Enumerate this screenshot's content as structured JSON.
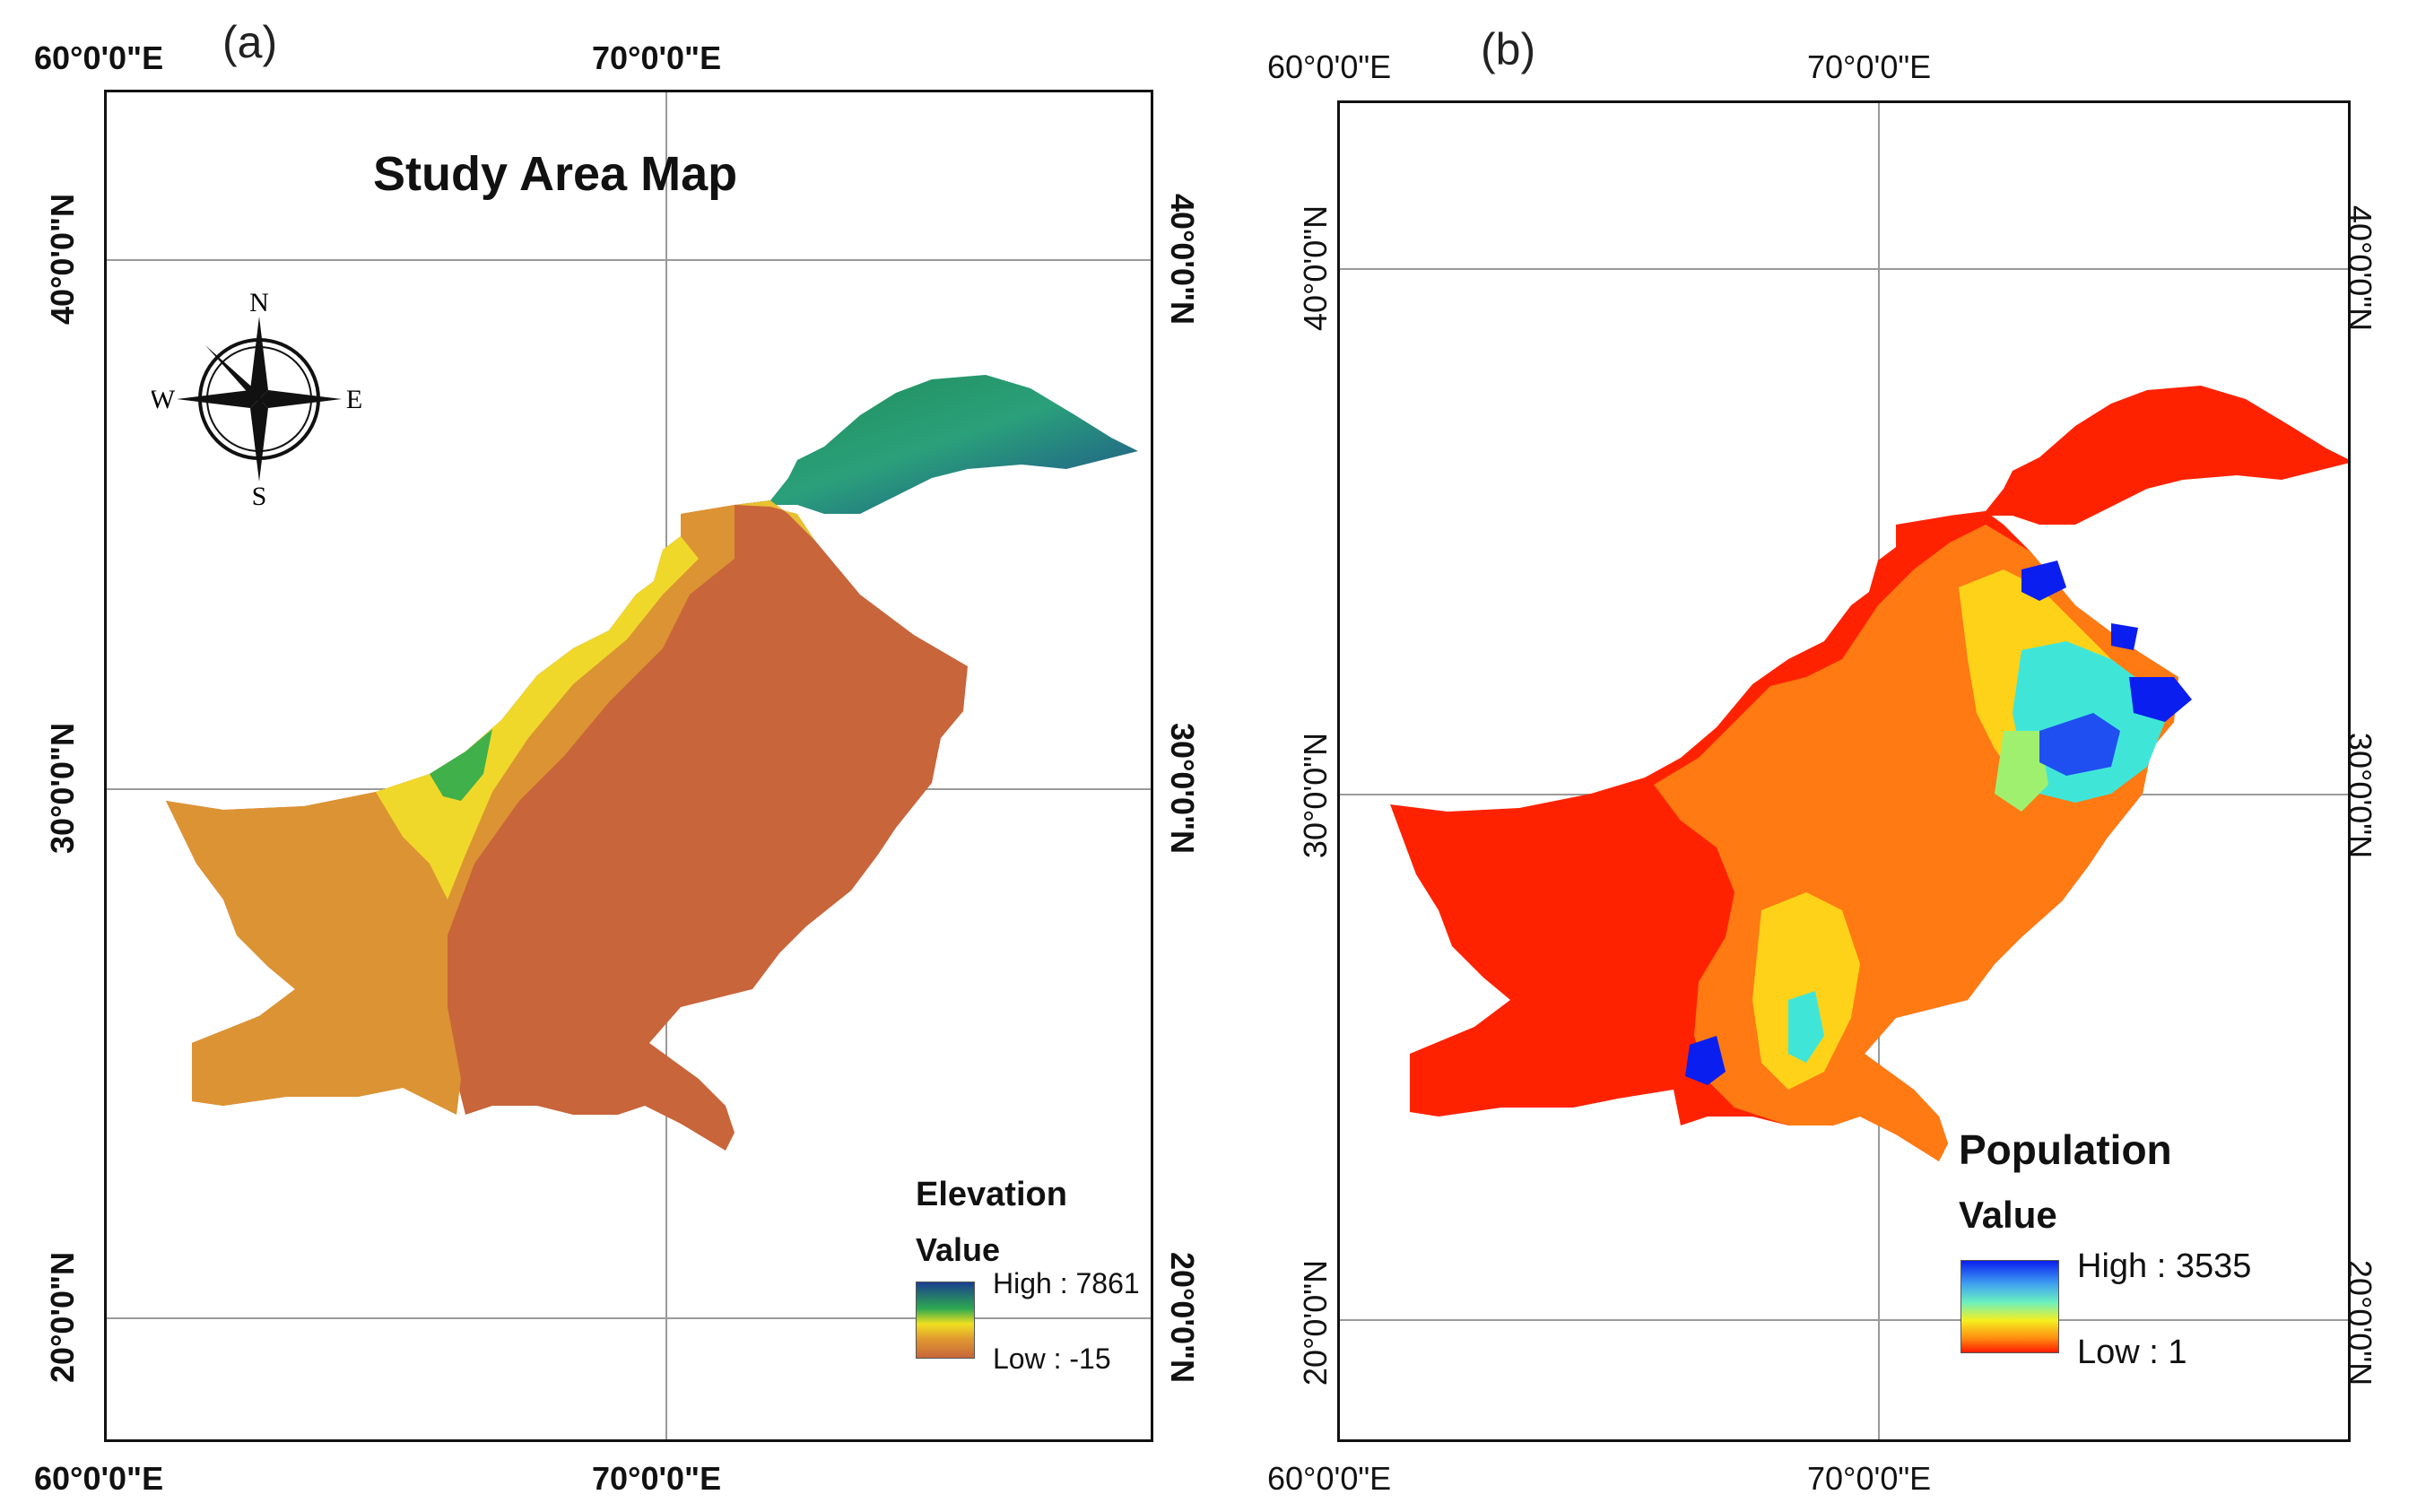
{
  "panel_a": {
    "letter": "(a)",
    "title": "Study Area Map",
    "lon_ticks_top": [
      "60°0'0\"E",
      "70°0'0\"E"
    ],
    "lon_ticks_bottom": [
      "60°0'0\"E",
      "70°0'0\"E"
    ],
    "lat_ticks": [
      "40°0'0\"N",
      "30°0'0\"N",
      "20°0'0\"N"
    ],
    "compass": {
      "n": "N",
      "s": "S",
      "e": "E",
      "w": "W"
    },
    "legend": {
      "title": "Elevation",
      "subtitle": "Value",
      "high": "High : 7861",
      "low": "Low : -15"
    },
    "colors": {
      "low": "#c8653a",
      "mid": "#f0e020",
      "high": "#1a3f8f"
    }
  },
  "panel_b": {
    "letter": "(b)",
    "lon_ticks_top": [
      "60°0'0\"E",
      "70°0'0\"E"
    ],
    "lon_ticks_bottom": [
      "60°0'0\"E",
      "70°0'0\"E"
    ],
    "lat_ticks": [
      "40°0'0\"N",
      "30°0'0\"N",
      "20°0'0\"N"
    ],
    "legend": {
      "title": "Population",
      "subtitle": "Value",
      "high": "High : 3535",
      "low": "Low : 1"
    },
    "colors": {
      "low": "#ff1a00",
      "mid": "#f5f020",
      "high": "#0a1ef0"
    }
  }
}
